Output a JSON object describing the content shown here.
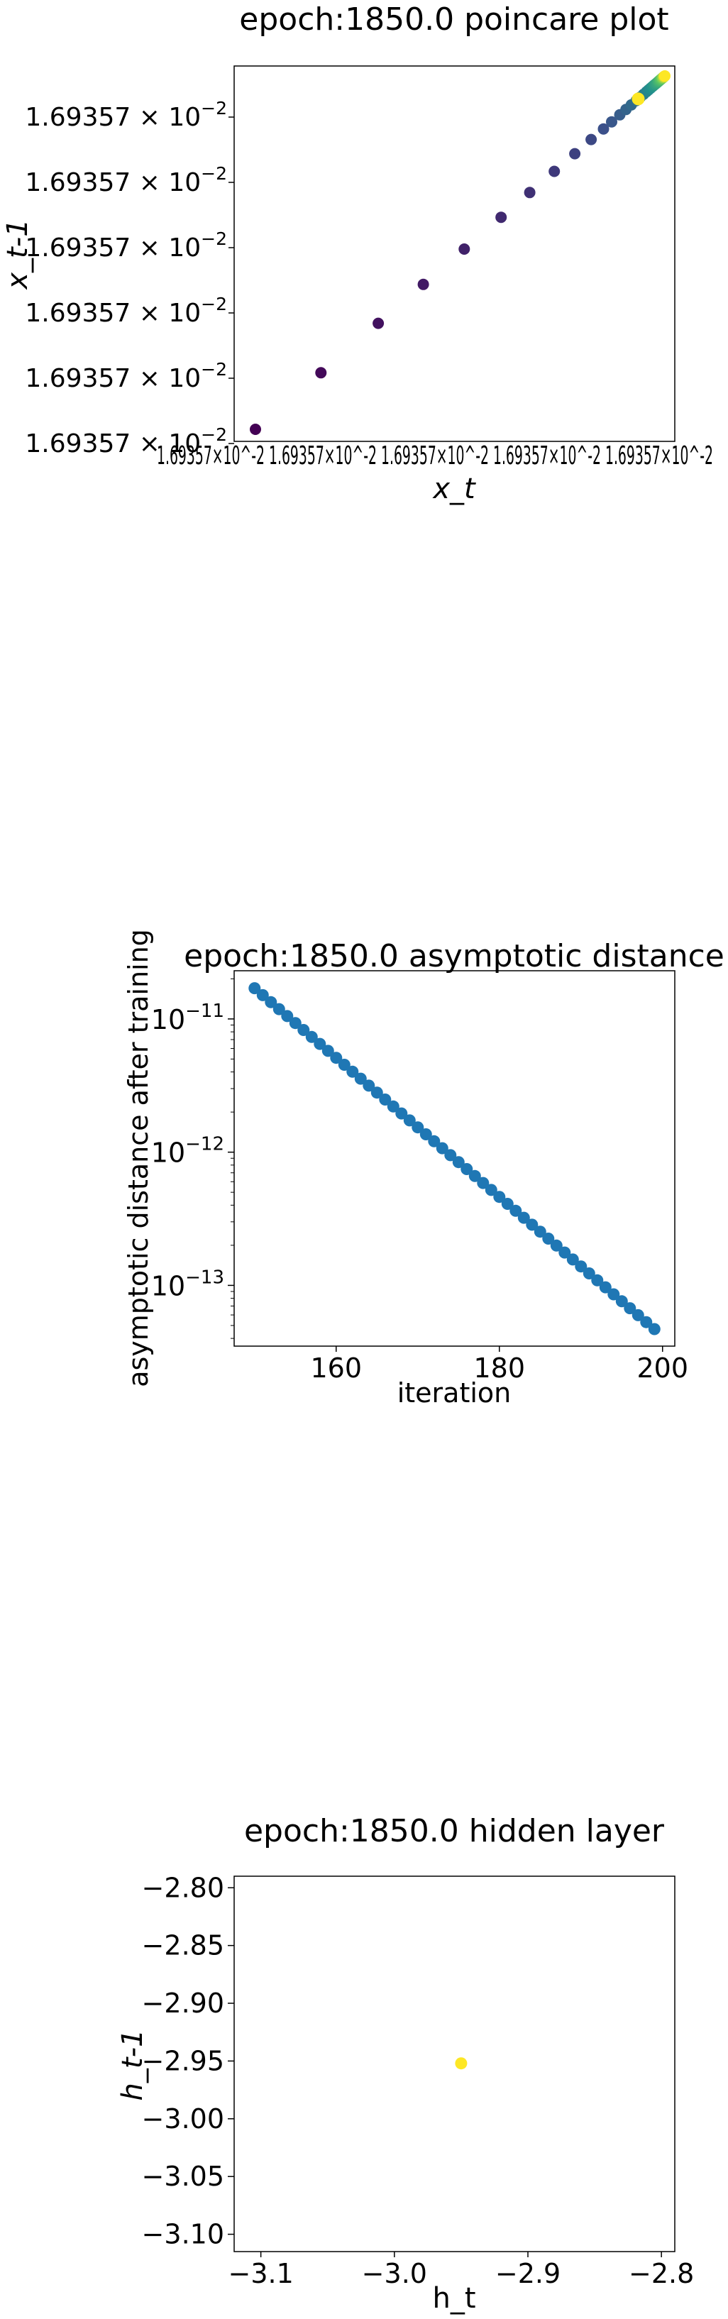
{
  "chart_data": [
    {
      "type": "scatter",
      "title": "epoch:1850.0 poincare plot",
      "xlabel": "x_t",
      "ylabel": "x_t-1",
      "colormap": "viridis",
      "y_tick_labels": [
        "1.69357 × 10^-2",
        "1.69357 × 10^-2",
        "1.69357 × 10^-2",
        "1.69357 × 10^-2",
        "1.69357 × 10^-2",
        "1.69357 × 10^-2"
      ],
      "x_tick_label_text": "1.69357×10^-2 1.69357×10^-2 1.69357×10^-2 1.69357×10^-2 1.69357×10^-2",
      "x": [
        0.0,
        0.16,
        0.3,
        0.41,
        0.51,
        0.6,
        0.67,
        0.73,
        0.78,
        0.82,
        0.85,
        0.87,
        0.89,
        0.905,
        0.918,
        0.93,
        0.94,
        0.948,
        0.955,
        0.96,
        0.965,
        0.97,
        0.974,
        0.977,
        0.98,
        0.983,
        0.985,
        0.987,
        0.989,
        0.99,
        0.992,
        0.993,
        0.994,
        0.995,
        0.996,
        0.997,
        0.9975,
        0.998,
        0.9985,
        0.999,
        0.9995,
        1.0
      ],
      "y": [
        0.0,
        0.16,
        0.3,
        0.41,
        0.51,
        0.6,
        0.67,
        0.73,
        0.78,
        0.82,
        0.85,
        0.87,
        0.89,
        0.905,
        0.918,
        0.93,
        0.94,
        0.948,
        0.955,
        0.96,
        0.965,
        0.97,
        0.974,
        0.977,
        0.98,
        0.983,
        0.985,
        0.987,
        0.989,
        0.99,
        0.992,
        0.993,
        0.994,
        0.995,
        0.996,
        0.997,
        0.9975,
        0.998,
        0.9985,
        0.999,
        0.9995,
        1.0
      ]
    },
    {
      "type": "scatter",
      "title": "epoch:1850.0 asymptotic distance",
      "xlabel": "iteration",
      "ylabel": "asymptotic distance after training",
      "yscale": "log",
      "xlim": [
        147.5,
        201.5
      ],
      "ylim": [
        3.5e-14,
        2.3e-11
      ],
      "x_ticks": [
        160,
        180,
        200
      ],
      "y_ticks": [
        1e-11,
        1e-12,
        1e-13
      ],
      "y_tick_base": "10",
      "y_tick_exponents": [
        "−11",
        "−12",
        "−13"
      ],
      "color": "#1f77b4",
      "x_start": 150,
      "x_end": 199,
      "y_start": 1.7e-11,
      "y_end": 4.7e-14
    },
    {
      "type": "scatter",
      "title": "epoch:1850.0 hidden layer",
      "xlabel": "h_t",
      "ylabel": "h_t-1",
      "xlim": [
        -3.12,
        -2.79
      ],
      "ylim": [
        -3.115,
        -2.79
      ],
      "x_ticks": [
        -3.1,
        -3.0,
        -2.9,
        -2.8
      ],
      "x_tick_labels": [
        "−3.1",
        "−3.0",
        "−2.9",
        "−2.8"
      ],
      "y_ticks": [
        -2.8,
        -2.85,
        -2.9,
        -2.95,
        -3.0,
        -3.05,
        -3.1
      ],
      "y_tick_labels": [
        "−2.80",
        "−2.85",
        "−2.90",
        "−2.95",
        "−3.00",
        "−3.05",
        "−3.10"
      ],
      "points": [
        {
          "x": -2.95,
          "y": -2.952
        }
      ],
      "color": "#fde725"
    }
  ]
}
